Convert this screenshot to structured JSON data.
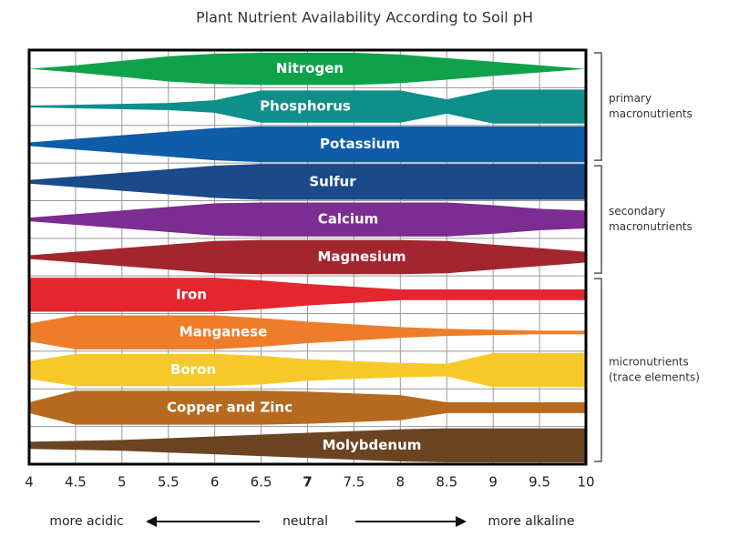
{
  "chart_data": {
    "type": "band",
    "title": "Plant Nutrient Availability According to Soil pH",
    "x": [
      4,
      4.5,
      5,
      5.5,
      6,
      6.5,
      7,
      7.5,
      8,
      8.5,
      9,
      9.5,
      10
    ],
    "xlim": [
      4,
      10
    ],
    "xticks": [
      4,
      4.5,
      5,
      5.5,
      6,
      6.5,
      7,
      7.5,
      8,
      8.5,
      9,
      9.5,
      10
    ],
    "grid": true,
    "series": [
      {
        "name": "Nitrogen",
        "color": "#10a24b",
        "values": [
          0,
          0.2,
          0.45,
          0.7,
          0.85,
          0.9,
          0.9,
          0.9,
          0.8,
          0.6,
          0.4,
          0.2,
          0
        ]
      },
      {
        "name": "Phosphorus",
        "color": "#0f8f8a",
        "values": [
          0.05,
          0.1,
          0.15,
          0.2,
          0.35,
          0.9,
          0.9,
          0.9,
          0.9,
          0.4,
          0.95,
          0.95,
          0.95
        ]
      },
      {
        "name": "Potassium",
        "color": "#0f5ca8",
        "values": [
          0.1,
          0.3,
          0.5,
          0.7,
          0.9,
          1,
          1,
          1,
          1,
          1,
          1,
          1,
          1
        ]
      },
      {
        "name": "Sulfur",
        "color": "#1b4a8a",
        "values": [
          0.1,
          0.3,
          0.5,
          0.7,
          0.9,
          1,
          1,
          1,
          1,
          1,
          1,
          1,
          1
        ]
      },
      {
        "name": "Calcium",
        "color": "#7b2d91",
        "values": [
          0.1,
          0.3,
          0.5,
          0.7,
          0.9,
          0.95,
          0.95,
          0.95,
          0.95,
          0.95,
          0.8,
          0.6,
          0.5
        ]
      },
      {
        "name": "Magnesium",
        "color": "#a3262f",
        "values": [
          0.1,
          0.3,
          0.5,
          0.7,
          0.9,
          0.95,
          0.95,
          0.95,
          0.95,
          0.9,
          0.7,
          0.5,
          0.3
        ]
      },
      {
        "name": "Iron",
        "color": "#e4262e",
        "values": [
          0.95,
          0.95,
          0.95,
          0.95,
          0.95,
          0.8,
          0.6,
          0.45,
          0.3,
          0.3,
          0.3,
          0.3,
          0.3
        ]
      },
      {
        "name": "Manganese",
        "color": "#ee7d2b",
        "values": [
          0.5,
          0.95,
          0.95,
          0.95,
          0.95,
          0.8,
          0.6,
          0.45,
          0.3,
          0.2,
          0.15,
          0.1,
          0.1
        ]
      },
      {
        "name": "Boron",
        "color": "#f7c928",
        "values": [
          0.5,
          0.9,
          0.9,
          0.9,
          0.9,
          0.8,
          0.6,
          0.5,
          0.4,
          0.35,
          0.95,
          0.95,
          0.95
        ]
      },
      {
        "name": "Copper and Zinc",
        "color": "#b66a1f",
        "values": [
          0.3,
          0.95,
          0.95,
          0.95,
          0.95,
          0.95,
          0.9,
          0.8,
          0.7,
          0.3,
          0.3,
          0.3,
          0.3
        ]
      },
      {
        "name": "Molybdenum",
        "color": "#6b4522",
        "values": [
          0.2,
          0.25,
          0.3,
          0.4,
          0.5,
          0.6,
          0.7,
          0.8,
          0.9,
          0.95,
          0.95,
          0.95,
          0.95
        ]
      }
    ],
    "groups": [
      [
        "primary",
        "macronutrients"
      ],
      [
        "secondary",
        "macronutrients"
      ],
      [
        "micronutrients",
        "(trace elements)"
      ]
    ],
    "footer": {
      "left": "more acidic",
      "center": "neutral",
      "right": "more alkaline"
    }
  }
}
